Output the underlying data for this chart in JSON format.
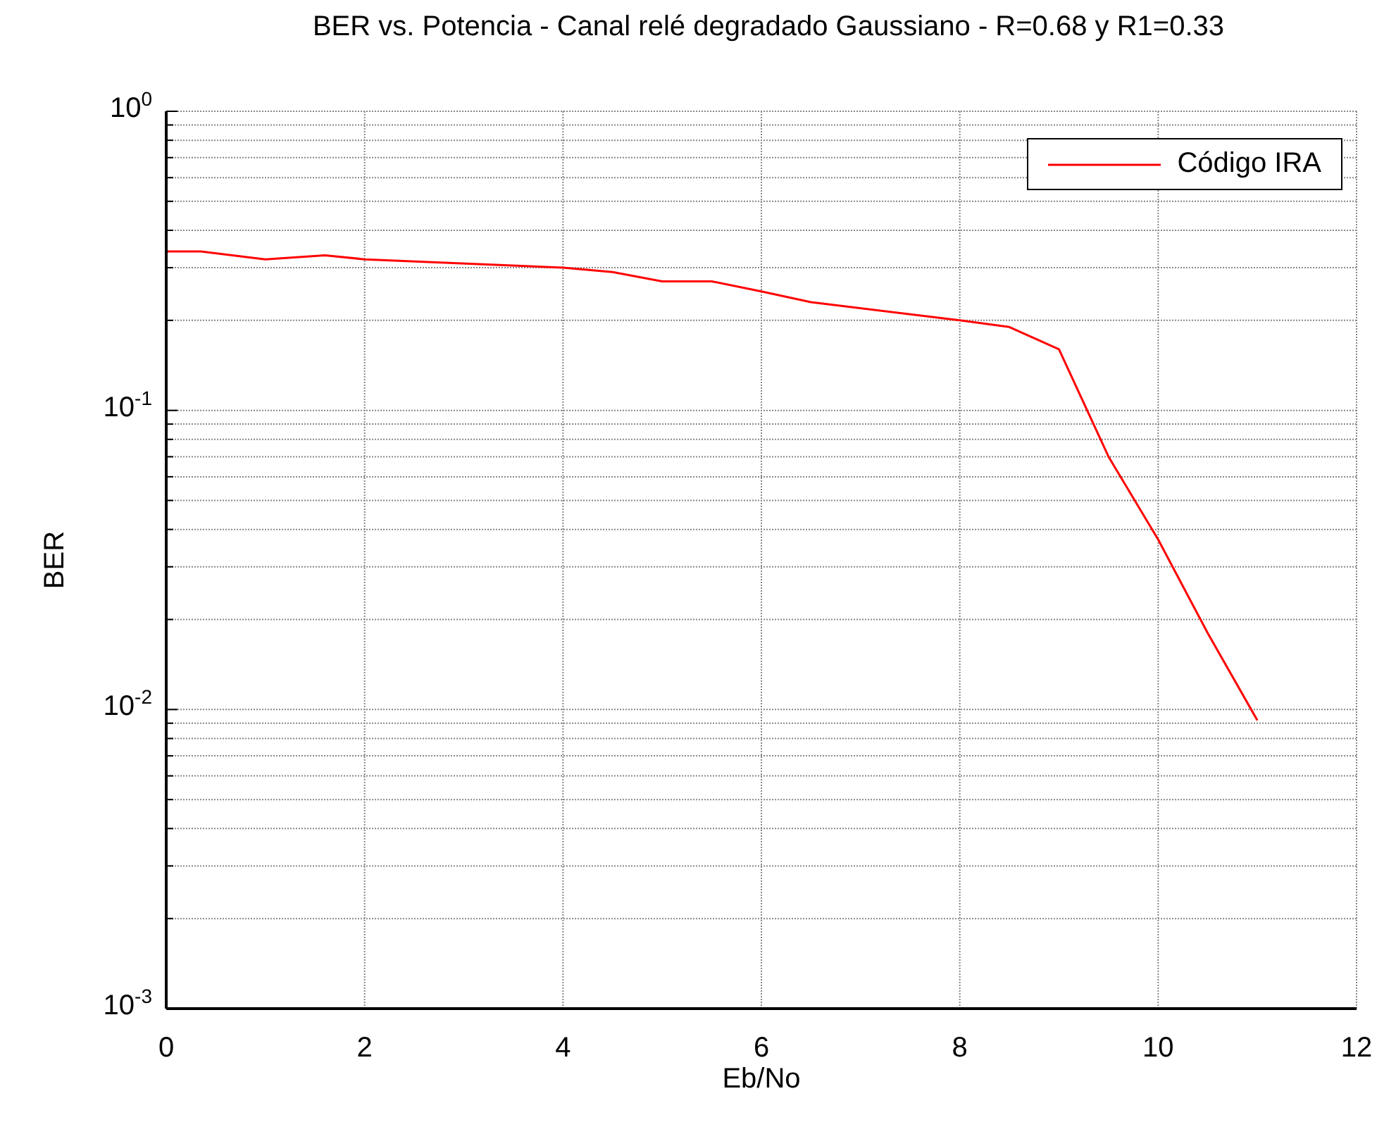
{
  "chart_data": {
    "type": "line",
    "title": "BER vs. Potencia - Canal relé degradado Gaussiano - R=0.68 y R1=0.33",
    "xlabel": "Eb/No",
    "ylabel": "BER",
    "x": [
      0,
      0.35,
      1,
      1.6,
      2,
      4,
      4.5,
      5,
      5.5,
      6,
      6.5,
      8,
      8.5,
      9,
      9.5,
      10,
      10.5,
      11
    ],
    "series": [
      {
        "name": "Código IRA",
        "color": "#ff0000",
        "values": [
          0.34,
          0.34,
          0.32,
          0.33,
          0.32,
          0.3,
          0.29,
          0.27,
          0.27,
          0.25,
          0.23,
          0.2,
          0.19,
          0.16,
          0.07,
          0.037,
          0.018,
          0.0092
        ]
      }
    ],
    "xlim": [
      0,
      12
    ],
    "xticks": [
      0,
      2,
      4,
      6,
      8,
      10,
      12
    ],
    "ylim": [
      0.001,
      1
    ],
    "yticks": [
      {
        "value": 0.001,
        "label": "10$^{-3}$"
      },
      {
        "value": 0.002,
        "label": null
      },
      {
        "value": 0.003,
        "label": null
      },
      {
        "value": 0.004,
        "label": null
      },
      {
        "value": 0.005,
        "label": null
      },
      {
        "value": 0.006,
        "label": null
      },
      {
        "value": 0.007,
        "label": null
      },
      {
        "value": 0.008,
        "label": null
      },
      {
        "value": 0.009,
        "label": null
      },
      {
        "value": 0.01,
        "label": "10$^{-2}$"
      },
      {
        "value": 0.02,
        "label": null
      },
      {
        "value": 0.03,
        "label": null
      },
      {
        "value": 0.04,
        "label": null
      },
      {
        "value": 0.05,
        "label": null
      },
      {
        "value": 0.06,
        "label": null
      },
      {
        "value": 0.07,
        "label": null
      },
      {
        "value": 0.08,
        "label": null
      },
      {
        "value": 0.09,
        "label": null
      },
      {
        "value": 0.1,
        "label": "10$^{-1}$"
      },
      {
        "value": 0.2,
        "label": null
      },
      {
        "value": 0.3,
        "label": null
      },
      {
        "value": 0.4,
        "label": null
      },
      {
        "value": 0.5,
        "label": null
      },
      {
        "value": 0.6,
        "label": null
      },
      {
        "value": 0.7,
        "label": null
      },
      {
        "value": 0.8,
        "label": null
      },
      {
        "value": 0.9,
        "label": null
      },
      {
        "value": 1,
        "label": "10$^{0}$"
      }
    ],
    "log": "y",
    "grid": true,
    "legend": "top right",
    "line_style": "solid",
    "marker": "none"
  }
}
